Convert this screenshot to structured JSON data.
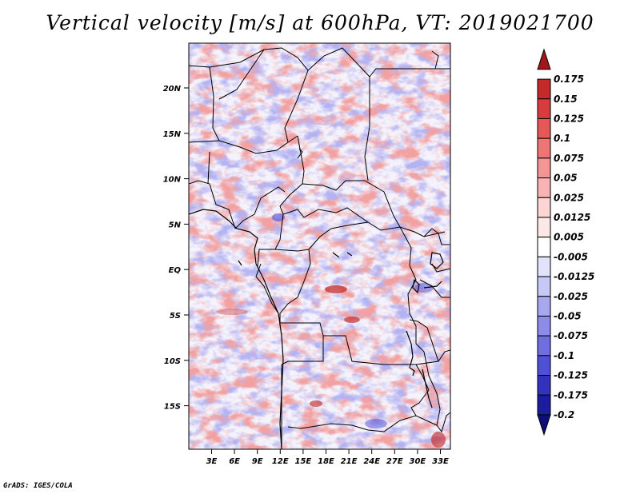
{
  "title": "Vertical velocity [m/s] at 600hPa, VT: 2019021700",
  "credit": "GrADS: IGES/COLA",
  "map": {
    "lat_ticks": [
      "20N",
      "15N",
      "10N",
      "5N",
      "EQ",
      "5S",
      "10S",
      "15S"
    ],
    "lon_ticks": [
      "3E",
      "6E",
      "9E",
      "12E",
      "15E",
      "18E",
      "21E",
      "24E",
      "27E",
      "30E",
      "33E"
    ],
    "strong_color": "#c02020",
    "weak_color": "#4a4ad8"
  },
  "colorbar": {
    "labels": [
      "0.175",
      "0.15",
      "0.125",
      "0.1",
      "0.075",
      "0.05",
      "0.025",
      "0.0125",
      "0.005",
      "-0.005",
      "-0.0125",
      "-0.025",
      "-0.05",
      "-0.075",
      "-0.1",
      "-0.125",
      "-0.175",
      "-0.2"
    ],
    "colors": [
      "#a01818",
      "#c42a2a",
      "#d83c3c",
      "#e65858",
      "#ef7474",
      "#f49494",
      "#f8b4b4",
      "#fbd4d4",
      "#fde8e8",
      "#ffffff",
      "#e2e2fb",
      "#c8c8f6",
      "#a8a8f0",
      "#8c8ce8",
      "#6e6ee0",
      "#5050d4",
      "#3232c0",
      "#1c1ca0",
      "#0e0e78"
    ]
  }
}
